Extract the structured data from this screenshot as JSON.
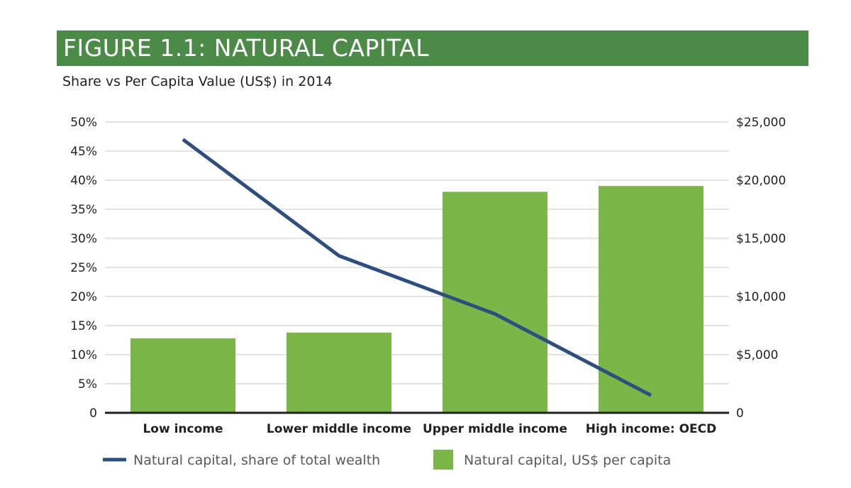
{
  "figure": {
    "banner_title": "FIGURE 1.1: NATURAL CAPITAL",
    "subtitle": "Share vs Per Capita Value (US$) in 2014"
  },
  "colors": {
    "banner": "#4b8a47",
    "bar": "#7ab648",
    "line": "#2e4f7e",
    "grid": "#c8c8c8",
    "axis": "#231f20"
  },
  "chart_data": {
    "type": "bar",
    "title": "Share vs Per Capita Value (US$) in 2014",
    "categories": [
      "Low income",
      "Lower middle income",
      "Upper middle income",
      "High income: OECD"
    ],
    "left_axis": {
      "ylim": [
        0,
        50
      ],
      "ticks": [
        0,
        5,
        10,
        15,
        20,
        25,
        30,
        35,
        40,
        45,
        50
      ],
      "tick_labels": [
        "0",
        "5%",
        "10%",
        "15%",
        "20%",
        "25%",
        "30%",
        "35%",
        "40%",
        "45%",
        "50%"
      ]
    },
    "right_axis": {
      "ylim": [
        0,
        25000
      ],
      "ticks": [
        0,
        5000,
        10000,
        15000,
        20000,
        25000
      ],
      "tick_labels": [
        "0",
        "$5,000",
        "$10,000",
        "$15,000",
        "$20,000",
        "$25,000"
      ]
    },
    "grid": true,
    "series": [
      {
        "name": "Natural capital, US$ per capita",
        "type": "bar",
        "axis": "right",
        "values": [
          6400,
          6900,
          19000,
          19500
        ]
      },
      {
        "name": "Natural capital, share of total wealth",
        "type": "line",
        "axis": "left",
        "values": [
          47,
          27,
          17,
          3
        ]
      }
    ],
    "legend": {
      "placement": "bottom",
      "items": [
        "Natural capital, share of total wealth",
        "Natural capital, US$ per capita"
      ]
    }
  }
}
